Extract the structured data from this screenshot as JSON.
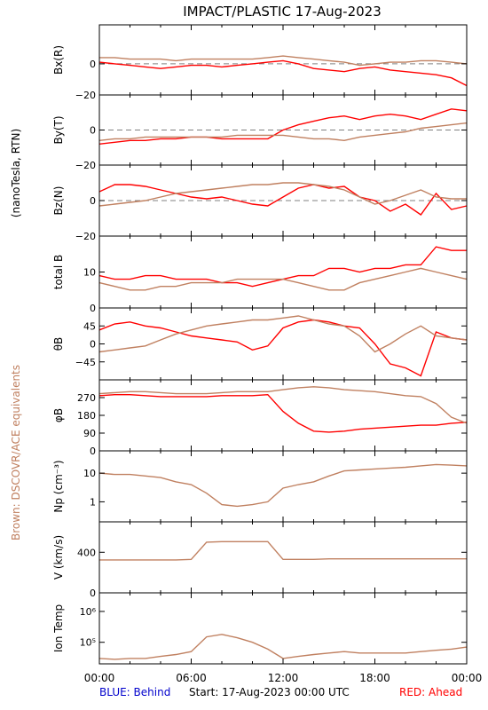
{
  "title": "IMPACT/PLASTIC   17-Aug-2023",
  "left_label_top": "(nanoTesla, RTN)",
  "left_label_bottom": "Brown: DSCOVR/ACE equivalents",
  "footer": {
    "blue": "BLUE: Behind",
    "start": "Start: 17-Aug-2023 00:00 UTC",
    "red": "RED: Ahead"
  },
  "colors": {
    "ahead": "#ff0000",
    "ace": "#c08060",
    "blue": "#0000cc",
    "frame": "#000000",
    "zero_line": "#808080"
  },
  "x_ticks": [
    "00:00",
    "06:00",
    "12:00",
    "18:00",
    "00:00"
  ],
  "chart_data": [
    {
      "id": "bx",
      "type": "line",
      "ylabel": "Bx(R)",
      "yticks": [
        {
          "v": 0,
          "t": "0"
        },
        {
          "v": -20,
          "t": "−20"
        }
      ],
      "ylim": [
        -20,
        25
      ],
      "zero_line": true,
      "series": [
        {
          "color": "ahead",
          "x": [
            0,
            1,
            2,
            3,
            4,
            5,
            6,
            7,
            8,
            9,
            10,
            11,
            12,
            13,
            14,
            15,
            16,
            17,
            18,
            19,
            20,
            21,
            22,
            23,
            24
          ],
          "y": [
            1,
            0,
            -1,
            -2,
            -3,
            -2,
            -1,
            -1,
            -2,
            -1,
            0,
            1,
            2,
            0,
            -3,
            -4,
            -5,
            -3,
            -2,
            -4,
            -5,
            -6,
            -7,
            -9,
            -14
          ]
        },
        {
          "color": "ace",
          "x": [
            0,
            1,
            2,
            3,
            4,
            5,
            6,
            7,
            8,
            9,
            10,
            11,
            12,
            13,
            14,
            15,
            16,
            17,
            18,
            19,
            20,
            21,
            22,
            23,
            24
          ],
          "y": [
            4,
            4,
            3,
            3,
            3,
            2,
            3,
            3,
            3,
            3,
            3,
            4,
            5,
            4,
            3,
            2,
            1,
            -1,
            0,
            1,
            1,
            2,
            2,
            1,
            0
          ]
        }
      ]
    },
    {
      "id": "by",
      "type": "line",
      "ylabel": "By(T)",
      "yticks": [
        {
          "v": 0,
          "t": "0"
        },
        {
          "v": -20,
          "t": "−20"
        }
      ],
      "ylim": [
        -20,
        20
      ],
      "zero_line": true,
      "series": [
        {
          "color": "ahead",
          "x": [
            0,
            1,
            2,
            3,
            4,
            5,
            6,
            7,
            8,
            9,
            10,
            11,
            12,
            13,
            14,
            15,
            16,
            17,
            18,
            19,
            20,
            21,
            22,
            23,
            24
          ],
          "y": [
            -8,
            -7,
            -6,
            -6,
            -5,
            -5,
            -4,
            -4,
            -5,
            -5,
            -5,
            -5,
            0,
            3,
            5,
            7,
            8,
            6,
            8,
            9,
            8,
            6,
            9,
            12,
            11
          ]
        },
        {
          "color": "ace",
          "x": [
            0,
            1,
            2,
            3,
            4,
            5,
            6,
            7,
            8,
            9,
            10,
            11,
            12,
            13,
            14,
            15,
            16,
            17,
            18,
            19,
            20,
            21,
            22,
            23,
            24
          ],
          "y": [
            -6,
            -5,
            -5,
            -4,
            -4,
            -4,
            -4,
            -4,
            -4,
            -3,
            -3,
            -3,
            -3,
            -4,
            -5,
            -5,
            -6,
            -4,
            -3,
            -2,
            -1,
            1,
            2,
            3,
            4
          ]
        }
      ]
    },
    {
      "id": "bz",
      "type": "line",
      "ylabel": "Bz(N)",
      "yticks": [
        {
          "v": 0,
          "t": "0"
        },
        {
          "v": -20,
          "t": "−20"
        }
      ],
      "ylim": [
        -20,
        20
      ],
      "zero_line": true,
      "series": [
        {
          "color": "ahead",
          "x": [
            0,
            1,
            2,
            3,
            4,
            5,
            6,
            7,
            8,
            9,
            10,
            11,
            12,
            13,
            14,
            15,
            16,
            17,
            18,
            19,
            20,
            21,
            22,
            23,
            24
          ],
          "y": [
            5,
            9,
            9,
            8,
            6,
            4,
            2,
            1,
            2,
            0,
            -2,
            -3,
            2,
            7,
            9,
            7,
            8,
            2,
            0,
            -6,
            -2,
            -8,
            4,
            -5,
            -3
          ]
        },
        {
          "color": "ace",
          "x": [
            0,
            1,
            2,
            3,
            4,
            5,
            6,
            7,
            8,
            9,
            10,
            11,
            12,
            13,
            14,
            15,
            16,
            17,
            18,
            19,
            20,
            21,
            22,
            23,
            24
          ],
          "y": [
            -3,
            -2,
            -1,
            0,
            2,
            4,
            5,
            6,
            7,
            8,
            9,
            9,
            10,
            10,
            9,
            8,
            6,
            2,
            -2,
            0,
            3,
            6,
            2,
            1,
            1
          ]
        }
      ]
    },
    {
      "id": "bt",
      "type": "line",
      "ylabel": "total B",
      "yticks": [
        {
          "v": 10,
          "t": "10"
        },
        {
          "v": 0,
          "t": "0"
        }
      ],
      "ylim": [
        0,
        20
      ],
      "series": [
        {
          "color": "ahead",
          "x": [
            0,
            1,
            2,
            3,
            4,
            5,
            6,
            7,
            8,
            9,
            10,
            11,
            12,
            13,
            14,
            15,
            16,
            17,
            18,
            19,
            20,
            21,
            22,
            23,
            24
          ],
          "y": [
            9,
            8,
            8,
            9,
            9,
            8,
            8,
            8,
            7,
            7,
            6,
            7,
            8,
            9,
            9,
            11,
            11,
            10,
            11,
            11,
            12,
            12,
            17,
            16,
            16
          ]
        },
        {
          "color": "ace",
          "x": [
            0,
            1,
            2,
            3,
            4,
            5,
            6,
            7,
            8,
            9,
            10,
            11,
            12,
            13,
            14,
            15,
            16,
            17,
            18,
            19,
            20,
            21,
            22,
            23,
            24
          ],
          "y": [
            7,
            6,
            5,
            5,
            6,
            6,
            7,
            7,
            7,
            8,
            8,
            8,
            8,
            7,
            6,
            5,
            5,
            7,
            8,
            9,
            10,
            11,
            10,
            9,
            8
          ]
        }
      ]
    },
    {
      "id": "theta",
      "type": "line",
      "ylabel": "θB",
      "yticks": [
        {
          "v": 45,
          "t": "45"
        },
        {
          "v": 0,
          "t": "0"
        },
        {
          "v": -45,
          "t": "−45"
        }
      ],
      "ylim": [
        -90,
        90
      ],
      "series": [
        {
          "color": "ahead",
          "x": [
            0,
            1,
            2,
            3,
            4,
            5,
            6,
            7,
            8,
            9,
            10,
            11,
            12,
            13,
            14,
            15,
            16,
            17,
            18,
            19,
            20,
            21,
            22,
            23,
            24
          ],
          "y": [
            35,
            50,
            55,
            45,
            40,
            30,
            20,
            15,
            10,
            5,
            -15,
            -5,
            40,
            55,
            60,
            55,
            45,
            40,
            0,
            -50,
            -60,
            -80,
            30,
            15,
            10
          ]
        },
        {
          "color": "ace",
          "x": [
            0,
            1,
            2,
            3,
            4,
            5,
            6,
            7,
            8,
            9,
            10,
            11,
            12,
            13,
            14,
            15,
            16,
            17,
            18,
            19,
            20,
            21,
            22,
            23,
            24
          ],
          "y": [
            -20,
            -15,
            -10,
            -5,
            10,
            25,
            35,
            45,
            50,
            55,
            60,
            60,
            65,
            70,
            60,
            50,
            45,
            20,
            -20,
            0,
            25,
            45,
            20,
            15,
            10
          ]
        }
      ]
    },
    {
      "id": "phi",
      "type": "line",
      "ylabel": "φB",
      "yticks": [
        {
          "v": 270,
          "t": "270"
        },
        {
          "v": 180,
          "t": "180"
        },
        {
          "v": 90,
          "t": "90"
        },
        {
          "v": 0,
          "t": "0"
        }
      ],
      "ylim": [
        0,
        360
      ],
      "series": [
        {
          "color": "ahead",
          "x": [
            0,
            1,
            2,
            3,
            4,
            5,
            6,
            7,
            8,
            9,
            10,
            11,
            12,
            13,
            14,
            15,
            16,
            17,
            18,
            19,
            20,
            21,
            22,
            23,
            24
          ],
          "y": [
            280,
            285,
            285,
            280,
            275,
            275,
            275,
            275,
            280,
            280,
            280,
            285,
            200,
            140,
            100,
            95,
            100,
            110,
            115,
            120,
            125,
            130,
            130,
            140,
            145
          ]
        },
        {
          "color": "ace",
          "x": [
            0,
            1,
            2,
            3,
            4,
            5,
            6,
            7,
            8,
            9,
            10,
            11,
            12,
            13,
            14,
            15,
            16,
            17,
            18,
            19,
            20,
            21,
            22,
            23,
            24
          ],
          "y": [
            290,
            295,
            300,
            300,
            295,
            290,
            290,
            290,
            295,
            300,
            300,
            300,
            310,
            320,
            325,
            320,
            310,
            305,
            300,
            290,
            280,
            275,
            240,
            170,
            140
          ]
        }
      ]
    },
    {
      "id": "np",
      "type": "line",
      "ylabel": "Np (cm⁻³)",
      "log": true,
      "yticks": [
        {
          "v": 10,
          "t": "10"
        },
        {
          "v": 1,
          "t": "1"
        }
      ],
      "ylim": [
        0.2,
        60
      ],
      "series": [
        {
          "color": "ace",
          "x": [
            0,
            1,
            2,
            3,
            4,
            5,
            6,
            7,
            8,
            9,
            10,
            11,
            12,
            13,
            14,
            15,
            16,
            17,
            18,
            19,
            20,
            21,
            22,
            23,
            24
          ],
          "y": [
            10,
            9,
            9,
            8,
            7,
            5,
            4,
            2,
            0.8,
            0.7,
            0.8,
            1,
            3,
            4,
            5,
            8,
            12,
            13,
            14,
            15,
            16,
            18,
            20,
            19,
            18
          ]
        }
      ]
    },
    {
      "id": "v",
      "type": "line",
      "ylabel": "V (km/s)",
      "yticks": [
        {
          "v": 400,
          "t": "400"
        },
        {
          "v": 0,
          "t": "0"
        }
      ],
      "ylim": [
        0,
        700
      ],
      "series": [
        {
          "color": "ace",
          "x": [
            0,
            1,
            2,
            3,
            4,
            5,
            6,
            7,
            8,
            9,
            10,
            11,
            12,
            13,
            14,
            15,
            16,
            17,
            18,
            19,
            20,
            21,
            22,
            23,
            24
          ],
          "y": [
            325,
            325,
            325,
            325,
            325,
            325,
            330,
            500,
            505,
            505,
            505,
            505,
            330,
            330,
            330,
            335,
            335,
            335,
            335,
            335,
            335,
            335,
            335,
            335,
            335
          ]
        }
      ]
    },
    {
      "id": "temp",
      "type": "line",
      "ylabel": "Ion Temp",
      "log": true,
      "yticks": [
        {
          "v": 1000000,
          "t": "10⁶"
        },
        {
          "v": 100000,
          "t": "10⁵"
        }
      ],
      "ylim": [
        20000,
        4000000
      ],
      "series": [
        {
          "color": "ace",
          "x": [
            0,
            1,
            2,
            3,
            4,
            5,
            6,
            7,
            8,
            9,
            10,
            11,
            12,
            13,
            14,
            15,
            16,
            17,
            18,
            19,
            20,
            21,
            22,
            23,
            24
          ],
          "y": [
            30000,
            28000,
            30000,
            30000,
            35000,
            40000,
            50000,
            150000,
            180000,
            140000,
            100000,
            60000,
            30000,
            35000,
            40000,
            45000,
            50000,
            45000,
            45000,
            45000,
            45000,
            50000,
            55000,
            60000,
            70000
          ]
        }
      ]
    }
  ]
}
